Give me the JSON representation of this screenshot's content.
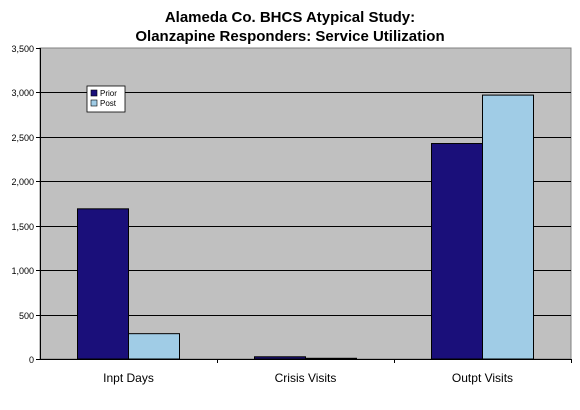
{
  "chart_data": {
    "type": "bar",
    "title_lines": [
      "Alameda Co. BHCS Atypical Study:",
      "Olanzapine Responders: Service Utilization"
    ],
    "categories": [
      "Inpt Days",
      "Crisis Visits",
      "Outpt Visits"
    ],
    "series": [
      {
        "name": "Prior",
        "values": [
          1690,
          25,
          2425
        ],
        "color": "#1a0f7a"
      },
      {
        "name": "Post",
        "values": [
          285,
          8,
          2970
        ],
        "color": "#a0cce6"
      }
    ],
    "ylim": [
      0,
      3500
    ],
    "yticks": [
      0,
      500,
      1000,
      1500,
      2000,
      2500,
      3000,
      3500
    ],
    "ytick_labels": [
      "0",
      "500",
      "1,000",
      "1,500",
      "2,000",
      "2,500",
      "3,000",
      "3,500"
    ],
    "grid": true,
    "plot_background": "#c0c0c0",
    "legend_position": "top-left"
  }
}
